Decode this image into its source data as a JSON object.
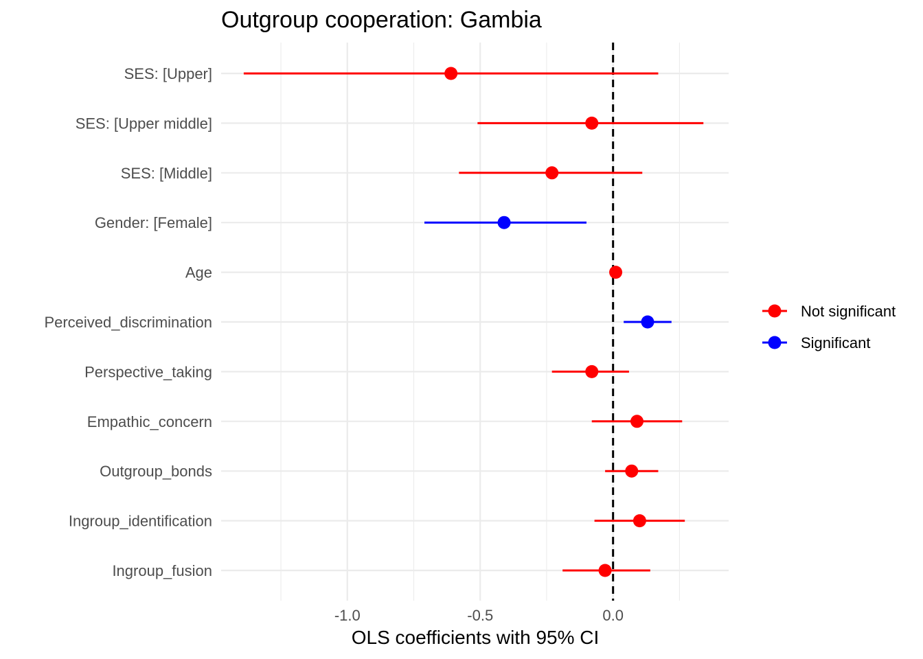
{
  "chart_data": {
    "type": "scatter",
    "title": "Outgroup cooperation: Gambia",
    "xlabel": "OLS coefficients with 95% CI",
    "ylabel": "",
    "xlim": [
      -1.475,
      0.435
    ],
    "xticks": [
      -1.0,
      -0.5,
      0.0
    ],
    "xtick_labels": [
      "-1.0",
      "-0.5",
      "0.0"
    ],
    "reference_line": 0.0,
    "grid": true,
    "legend_position": "right",
    "legend": [
      {
        "name": "Not significant",
        "color": "#ff0000"
      },
      {
        "name": "Significant",
        "color": "#0000ff"
      }
    ],
    "categories": [
      "SES:  [Upper]",
      "SES:  [Upper middle]",
      "SES:  [Middle]",
      "Gender:  [Female]",
      "Age",
      "Perceived_discrimination",
      "Perspective_taking",
      "Empathic_concern",
      "Outgroup_bonds",
      "Ingroup_identification",
      "Ingroup_fusion"
    ],
    "estimates": [
      -0.61,
      -0.08,
      -0.23,
      -0.41,
      0.01,
      0.13,
      -0.08,
      0.09,
      0.07,
      0.1,
      -0.03
    ],
    "ci_low": [
      -1.39,
      -0.51,
      -0.58,
      -0.71,
      0.0,
      0.04,
      -0.23,
      -0.08,
      -0.03,
      -0.07,
      -0.19
    ],
    "ci_high": [
      0.17,
      0.34,
      0.11,
      -0.1,
      0.01,
      0.22,
      0.06,
      0.26,
      0.17,
      0.27,
      0.14
    ],
    "significance": [
      "Not significant",
      "Not significant",
      "Not significant",
      "Significant",
      "Not significant",
      "Significant",
      "Not significant",
      "Not significant",
      "Not significant",
      "Not significant",
      "Not significant"
    ]
  }
}
